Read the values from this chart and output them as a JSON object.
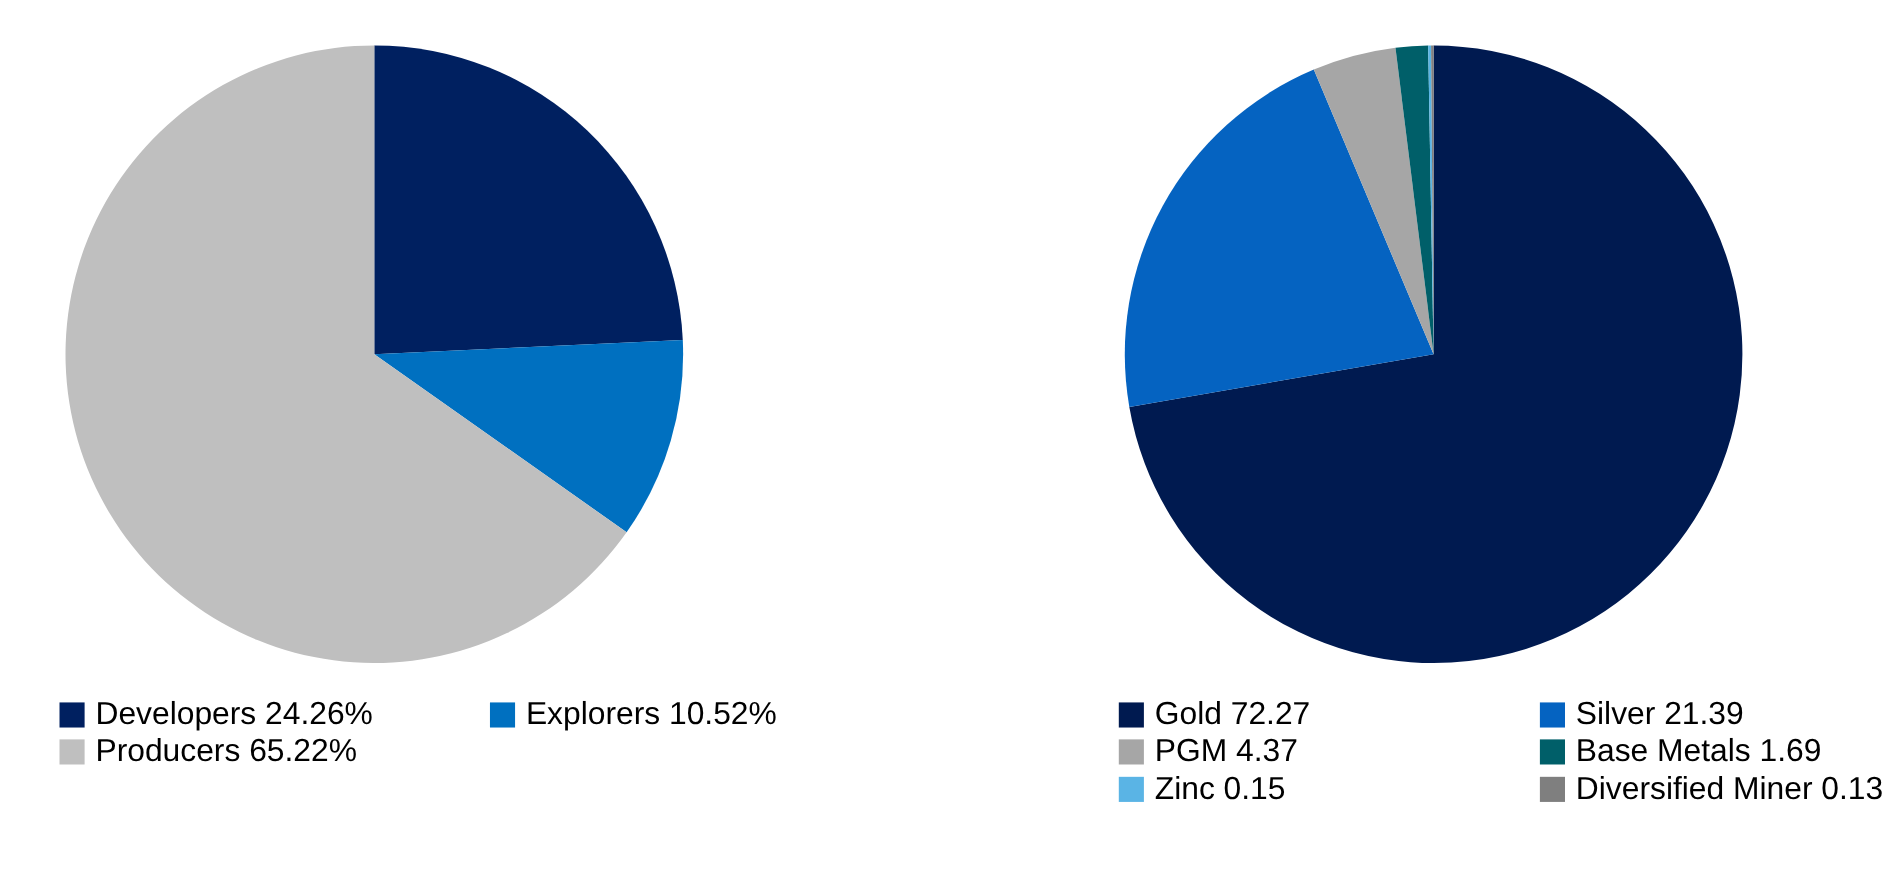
{
  "chart_data": [
    {
      "type": "pie",
      "categories": [
        "Developers",
        "Explorers",
        "Producers"
      ],
      "values": [
        24.26,
        10.52,
        65.22
      ],
      "value_labels": [
        "24.26%",
        "10.52%",
        "65.22%"
      ],
      "colors": [
        "#002060",
        "#0070c0",
        "#bfbfbf"
      ],
      "legend": "bottom"
    },
    {
      "type": "pie",
      "categories": [
        "Gold",
        "Silver",
        "PGM",
        "Base Metals",
        "Zinc",
        "Diversified Miner"
      ],
      "values": [
        72.27,
        21.39,
        4.37,
        1.69,
        0.15,
        0.13
      ],
      "value_labels": [
        "72.27",
        "21.39",
        "4.37",
        "1.69",
        "0.15",
        "0.13"
      ],
      "colors": [
        "#001a50",
        "#0563c1",
        "#a6a6a6",
        "#005f69",
        "#5ab4e5",
        "#7f7f7f"
      ],
      "legend": "bottom"
    }
  ]
}
